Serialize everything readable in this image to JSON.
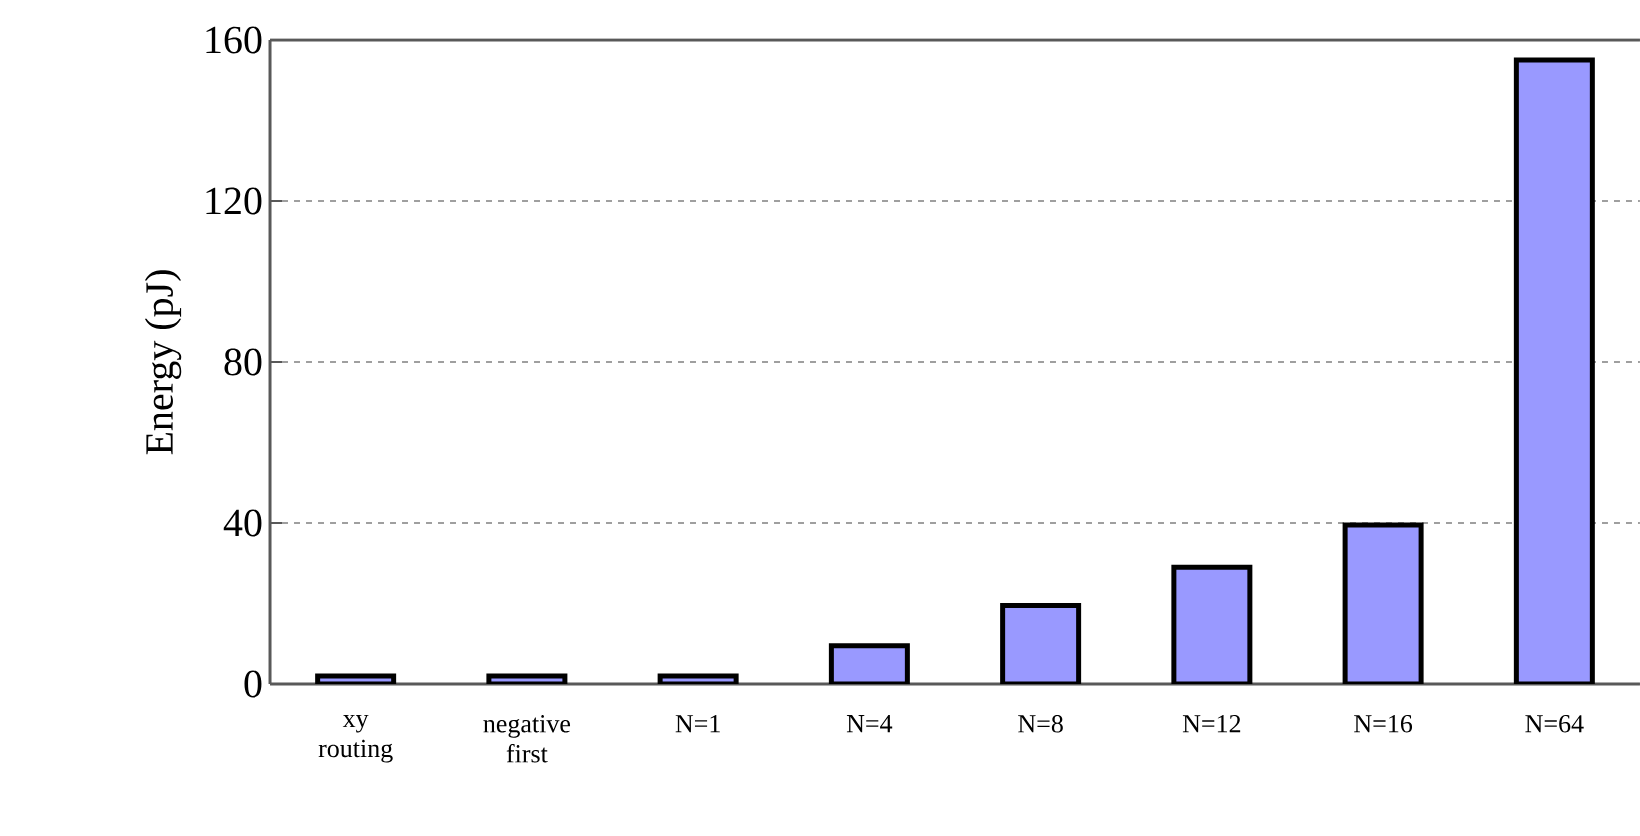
{
  "chart_data": {
    "type": "bar",
    "ylabel": "Energy (pJ)",
    "categories": [
      "xy routing",
      "negative first",
      "N=1",
      "N=4",
      "N=8",
      "N=12",
      "N=16",
      "N=64"
    ],
    "values": [
      2,
      2,
      2,
      9.5,
      19.5,
      29,
      39.5,
      155
    ],
    "color": "#9999ff",
    "ylim": [
      0,
      160
    ],
    "yticks": [
      0,
      40,
      80,
      120,
      160
    ],
    "grid": "y"
  }
}
